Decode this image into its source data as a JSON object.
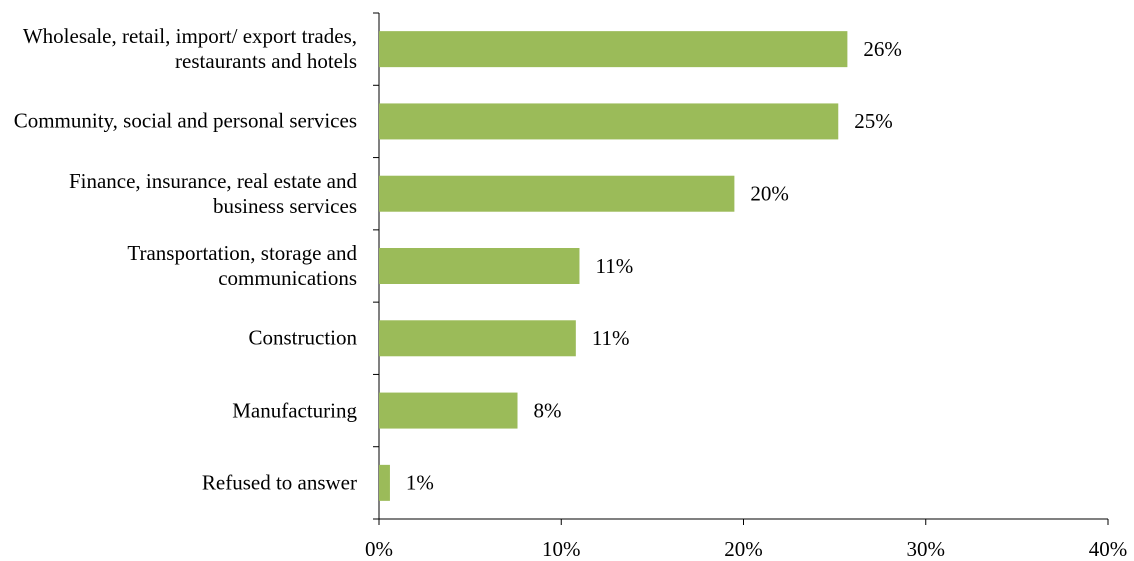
{
  "chart_data": {
    "type": "bar",
    "orientation": "horizontal",
    "categories": [
      "Wholesale, retail, import/ export trades, restaurants and hotels",
      "Community, social and personal services",
      "Finance, insurance, real estate and business services",
      "Transportation, storage and communications",
      "Construction",
      "Manufacturing",
      "Refused to answer"
    ],
    "values": [
      25.7,
      25.2,
      19.5,
      11.0,
      10.8,
      7.6,
      0.6
    ],
    "value_labels": [
      "26%",
      "25%",
      "20%",
      "11%",
      "11%",
      "8%",
      "1%"
    ],
    "color": "#9bbb59",
    "xlim": [
      0,
      40
    ],
    "xticks": [
      {
        "value": 0,
        "label": "0%"
      },
      {
        "value": 10,
        "label": "10%"
      },
      {
        "value": 20,
        "label": "20%"
      },
      {
        "value": 30,
        "label": "30%"
      },
      {
        "value": 40,
        "label": "40%"
      }
    ],
    "grid": false
  }
}
